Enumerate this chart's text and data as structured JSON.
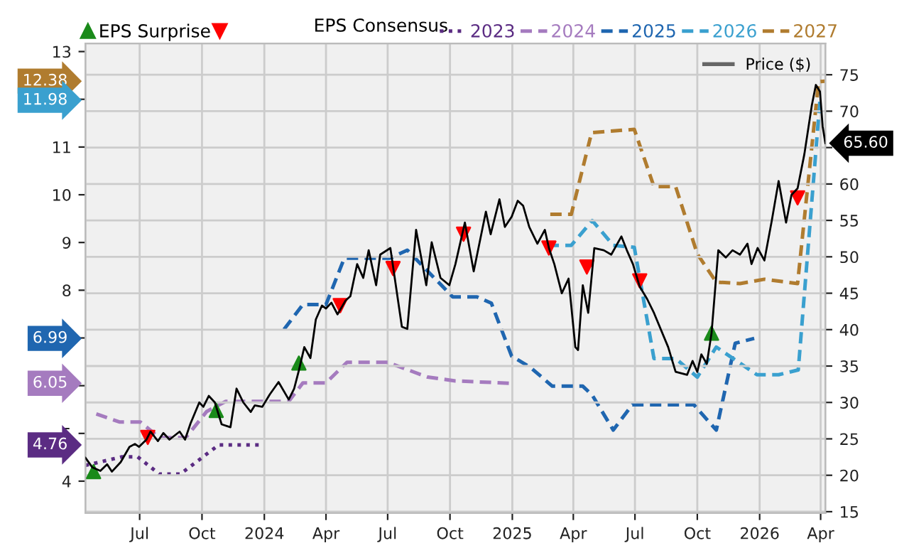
{
  "chart_data": {
    "type": "line",
    "legend_title": "EPS Consensus",
    "legend": "top",
    "grid": true,
    "xlim": [
      "2023-04-12",
      "2026-04-08"
    ],
    "xticks": [
      {
        "value": "2023-07-01",
        "label": "Jul"
      },
      {
        "value": "2023-10-01",
        "label": "Oct"
      },
      {
        "value": "2024-01-01",
        "label": "2024"
      },
      {
        "value": "2024-04-01",
        "label": "Apr"
      },
      {
        "value": "2024-07-01",
        "label": "Jul"
      },
      {
        "value": "2024-10-01",
        "label": "Oct"
      },
      {
        "value": "2025-01-01",
        "label": "2025"
      },
      {
        "value": "2025-04-01",
        "label": "Apr"
      },
      {
        "value": "2025-07-01",
        "label": "Jul"
      },
      {
        "value": "2025-10-01",
        "label": "Oct"
      },
      {
        "value": "2026-01-01",
        "label": "2026"
      },
      {
        "value": "2026-04-01",
        "label": "Apr"
      }
    ],
    "ylim": [
      3.33,
      13.17
    ],
    "yticks": [
      4,
      5,
      {
        "value": 6,
        "label": null
      },
      {
        "value": 7,
        "label": null
      },
      8,
      9,
      10,
      11,
      {
        "value": 12,
        "label": null
      },
      13
    ],
    "y2lim": [
      14.8,
      79.3
    ],
    "y2ticks": [
      15,
      20,
      25,
      30,
      35,
      40,
      45,
      50,
      55,
      60,
      {
        "value": 65,
        "label": null
      },
      70,
      75
    ],
    "annotations": [
      "12.38",
      "11.98",
      "6.99",
      "6.05",
      "4.76",
      "65.60"
    ],
    "series": [
      {
        "name": "2023",
        "color": "#5b2c83",
        "line_style": "dotted",
        "x": [
          "2023-04-12",
          "2023-06-05",
          "2023-06-28",
          "2023-07-30",
          "2023-08-30",
          "2023-10-26",
          "2023-12-28"
        ],
        "values": [
          4.33,
          4.51,
          4.51,
          4.15,
          4.15,
          4.76,
          4.76
        ]
      },
      {
        "name": "2024",
        "color": "#a57bbf",
        "line_style": "dashed",
        "x": [
          "2023-04-28",
          "2023-06-01",
          "2023-07-02",
          "2023-07-30",
          "2023-09-07",
          "2023-10-08",
          "2023-11-05",
          "2024-02-06",
          "2024-02-27",
          "2024-04-01",
          "2024-05-02",
          "2024-07-01",
          "2024-08-29",
          "2024-10-09",
          "2024-12-31"
        ],
        "values": [
          5.41,
          5.24,
          5.24,
          4.91,
          4.91,
          5.46,
          5.67,
          5.67,
          6.06,
          6.06,
          6.49,
          6.49,
          6.18,
          6.1,
          6.05
        ]
      },
      {
        "name": "2025",
        "color": "#1f66b0",
        "line_style": "dashed",
        "x": [
          "2024-01-30",
          "2024-02-27",
          "2024-04-01",
          "2024-04-28",
          "2024-07-04",
          "2024-07-30",
          "2024-10-05",
          "2024-11-10",
          "2024-12-01",
          "2024-12-31",
          "2025-01-28",
          "2025-03-01",
          "2025-04-15",
          "2025-04-29",
          "2025-05-30",
          "2025-06-27",
          "2025-09-26",
          "2025-10-29",
          "2025-11-26",
          "2025-12-24"
        ],
        "values": [
          7.18,
          7.7,
          7.7,
          8.67,
          8.67,
          8.84,
          7.86,
          7.86,
          7.73,
          6.62,
          6.38,
          5.99,
          5.99,
          5.8,
          5.07,
          5.6,
          5.6,
          5.07,
          6.89,
          6.99
        ]
      },
      {
        "name": "2026",
        "color": "#3aa0cf",
        "line_style": "dashed",
        "x": [
          "2025-02-22",
          "2025-03-29",
          "2025-04-29",
          "2025-05-30",
          "2025-06-30",
          "2025-07-29",
          "2025-08-30",
          "2025-10-01",
          "2025-10-29",
          "2025-12-28",
          "2026-01-29",
          "2026-02-27",
          "2026-03-31"
        ],
        "values": [
          8.94,
          8.94,
          9.46,
          8.94,
          8.9,
          6.57,
          6.57,
          6.18,
          6.81,
          6.23,
          6.23,
          6.33,
          11.98
        ]
      },
      {
        "name": "2027",
        "color": "#b07c2f",
        "line_style": "dashed",
        "x": [
          "2025-02-26",
          "2025-03-29",
          "2025-04-28",
          "2025-06-30",
          "2025-07-29",
          "2025-08-30",
          "2025-10-01",
          "2025-10-29",
          "2025-12-03",
          "2026-01-08",
          "2026-02-26",
          "2026-03-29",
          "2026-04-07"
        ],
        "values": [
          9.59,
          9.59,
          11.3,
          11.37,
          10.17,
          10.17,
          8.76,
          8.17,
          8.14,
          8.23,
          8.14,
          12.37,
          12.38
        ]
      },
      {
        "name": "Price ($)",
        "color": "#000000",
        "line_style": "solid",
        "axis": "y2",
        "x": [
          "2023-04-12",
          "2023-04-22",
          "2023-05-04",
          "2023-05-14",
          "2023-05-21",
          "2023-06-03",
          "2023-06-16",
          "2023-06-24",
          "2023-06-30",
          "2023-07-11",
          "2023-07-17",
          "2023-07-28",
          "2023-08-05",
          "2023-08-14",
          "2023-08-29",
          "2023-09-06",
          "2023-09-14",
          "2023-09-27",
          "2023-10-03",
          "2023-10-11",
          "2023-10-20",
          "2023-10-30",
          "2023-11-12",
          "2023-11-21",
          "2023-12-01",
          "2023-12-12",
          "2023-12-18",
          "2023-12-29",
          "2024-01-09",
          "2024-01-22",
          "2024-02-06",
          "2024-02-14",
          "2024-02-21",
          "2024-02-29",
          "2024-03-09",
          "2024-03-17",
          "2024-03-26",
          "2024-04-01",
          "2024-04-09",
          "2024-04-18",
          "2024-04-30",
          "2024-05-07",
          "2024-05-17",
          "2024-05-26",
          "2024-06-03",
          "2024-06-14",
          "2024-06-20",
          "2024-07-05",
          "2024-07-22",
          "2024-07-30",
          "2024-08-12",
          "2024-08-27",
          "2024-09-04",
          "2024-09-17",
          "2024-09-30",
          "2024-10-09",
          "2024-10-23",
          "2024-11-05",
          "2024-11-23",
          "2024-11-30",
          "2024-12-13",
          "2024-12-21",
          "2024-12-31",
          "2025-01-09",
          "2025-01-17",
          "2025-01-26",
          "2025-02-07",
          "2025-02-18",
          "2025-02-24",
          "2025-03-04",
          "2025-03-15",
          "2025-03-25",
          "2025-04-04",
          "2025-04-08",
          "2025-04-15",
          "2025-04-23",
          "2025-05-02",
          "2025-05-16",
          "2025-05-27",
          "2025-06-11",
          "2025-06-19",
          "2025-06-28",
          "2025-07-08",
          "2025-07-19",
          "2025-07-29",
          "2025-08-19",
          "2025-08-30",
          "2025-09-16",
          "2025-09-24",
          "2025-10-01",
          "2025-10-07",
          "2025-10-15",
          "2025-10-22",
          "2025-11-01",
          "2025-11-12",
          "2025-11-22",
          "2025-12-03",
          "2025-12-14",
          "2025-12-20",
          "2025-12-29",
          "2026-01-08",
          "2026-01-19",
          "2026-01-29",
          "2026-02-09",
          "2026-02-17",
          "2026-02-26",
          "2026-03-08",
          "2026-03-19",
          "2026-03-25",
          "2026-03-31",
          "2026-04-04",
          "2026-04-08"
        ],
        "values": [
          22.4,
          21.1,
          20.6,
          21.5,
          20.5,
          21.8,
          23.9,
          24.3,
          23.9,
          24.9,
          26.0,
          24.7,
          25.8,
          24.9,
          26.0,
          24.9,
          27.1,
          30.0,
          29.4,
          30.9,
          30.0,
          27.0,
          26.6,
          31.9,
          30.0,
          28.7,
          29.6,
          29.4,
          31.1,
          32.8,
          30.4,
          31.9,
          34.4,
          37.6,
          36.1,
          41.4,
          43.3,
          42.9,
          43.7,
          42.1,
          44.0,
          44.6,
          49.0,
          47.1,
          50.9,
          46.1,
          50.3,
          51.2,
          40.4,
          40.1,
          53.7,
          46.1,
          52.0,
          47.1,
          46.1,
          49.0,
          54.7,
          48.0,
          56.2,
          53.1,
          57.9,
          54.1,
          55.5,
          57.7,
          57.0,
          54.1,
          51.8,
          53.7,
          51.2,
          49.0,
          45.0,
          47.0,
          37.6,
          37.2,
          46.1,
          42.3,
          51.2,
          50.9,
          50.3,
          52.8,
          50.9,
          49.0,
          45.9,
          44.2,
          42.3,
          37.6,
          34.2,
          33.8,
          35.7,
          34.2,
          36.6,
          35.3,
          39.5,
          50.9,
          49.9,
          50.9,
          50.3,
          51.8,
          49.0,
          51.2,
          49.5,
          55.0,
          60.4,
          54.7,
          58.5,
          59.4,
          64.1,
          70.8,
          73.6,
          72.7,
          67.9,
          65.6
        ]
      },
      {
        "name": "EPS Surprise",
        "type": "scatter",
        "axis": "y2",
        "marker": "triangle",
        "color": "#1a8a1a",
        "x": [
          "2023-04-24",
          "2023-10-22",
          "2024-02-21",
          "2025-10-22"
        ],
        "values": [
          20.5,
          28.9,
          35.4,
          39.5
        ]
      },
      {
        "type": "scatter",
        "axis": "y2",
        "marker": "triangle_down",
        "color": "#ff0000",
        "x": [
          "2023-07-13",
          "2024-04-22",
          "2024-07-09",
          "2024-10-21",
          "2025-02-24",
          "2025-04-21",
          "2025-07-08",
          "2026-02-26"
        ],
        "values": [
          25.2,
          43.3,
          48.4,
          53.1,
          51.2,
          48.6,
          46.7,
          58.1
        ]
      }
    ]
  }
}
